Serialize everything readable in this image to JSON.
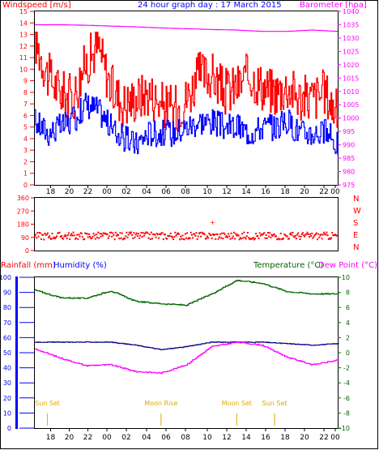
{
  "chart_data": [
    {
      "type": "line",
      "title": "24 hour graph day : 17 March 2015",
      "ylabel_left": "Windspeed [m/s]",
      "ylabel_right": "Barometer [hpa]",
      "x_ticks": [
        "18",
        "20",
        "22",
        "00",
        "02",
        "04",
        "06",
        "08",
        "10",
        "12",
        "14",
        "16",
        "18",
        "20",
        "22",
        "00"
      ],
      "y_left_ticks": [
        "0",
        "1",
        "2",
        "3",
        "4",
        "5",
        "6",
        "7",
        "8",
        "9",
        "10",
        "11",
        "12",
        "13",
        "14",
        "15"
      ],
      "y_right_ticks": [
        "975",
        "980",
        "985",
        "990",
        "995",
        "1000",
        "1005",
        "1010",
        "1015",
        "1020",
        "1025",
        "1030",
        "1035",
        "1040"
      ],
      "ylim_left": [
        0,
        15
      ],
      "ylim_right": [
        975,
        1040
      ],
      "series": [
        {
          "key": "gust",
          "color": "#ff0000",
          "hours": [
            0,
            1,
            2,
            3,
            4,
            5,
            6,
            7,
            8,
            9,
            10,
            11,
            12,
            13,
            14,
            15,
            16,
            17,
            18,
            19,
            20,
            21,
            22,
            23,
            24
          ],
          "values": [
            12.5,
            9.5,
            8.0,
            7.5,
            10.5,
            12.0,
            8.5,
            7.0,
            7.5,
            8.0,
            7.0,
            6.5,
            7.5,
            9.5,
            9.5,
            8.0,
            8.5,
            9.5,
            8.5,
            8.0,
            8.5,
            7.5,
            7.5,
            8.0,
            6.0
          ]
        },
        {
          "key": "average",
          "color": "#0000ff",
          "hours": [
            0,
            1,
            2,
            3,
            4,
            5,
            6,
            7,
            8,
            9,
            10,
            11,
            12,
            13,
            14,
            15,
            16,
            17,
            18,
            19,
            20,
            21,
            22,
            23,
            24
          ],
          "values": [
            5.5,
            4.5,
            5.0,
            5.5,
            7.0,
            6.5,
            5.0,
            4.0,
            3.5,
            4.5,
            4.5,
            4.5,
            5.0,
            5.5,
            5.5,
            5.0,
            5.0,
            4.5,
            5.0,
            5.0,
            5.5,
            4.5,
            4.5,
            4.5,
            3.5
          ]
        },
        {
          "key": "barometer",
          "color": "#ff00ff",
          "hours": [
            0,
            2,
            4,
            6,
            8,
            10,
            12,
            14,
            16,
            18,
            20,
            22,
            24
          ],
          "values": [
            1035.0,
            1035.0,
            1034.8,
            1034.5,
            1034.2,
            1033.8,
            1033.5,
            1033.2,
            1033.0,
            1032.5,
            1032.5,
            1033.0,
            1032.5
          ]
        }
      ]
    },
    {
      "type": "scatter",
      "ylabel_right": "N W S E N",
      "y_left_ticks": [
        "360",
        "270",
        "180",
        "90",
        "0"
      ],
      "ylim": [
        0,
        360
      ],
      "series": [
        {
          "key": "wind-direction",
          "color": "#ff0000",
          "mean_degrees": 100,
          "spread_degrees": 25
        }
      ]
    },
    {
      "type": "line",
      "ylabel_left": "Rainfall (mm)",
      "ylabel_left2": "Humidity (%)",
      "ylabel_right": "Temperature (°C)",
      "ylabel_right2": "Dew Point (°C)",
      "y_left_ticks": [
        "0",
        "10",
        "20",
        "30",
        "40",
        "50",
        "60",
        "70",
        "80",
        "90",
        "100"
      ],
      "y_right_ticks": [
        "10",
        "8",
        "6",
        "4",
        "2",
        "0",
        "-2",
        "-4",
        "-6",
        "-8",
        "-10"
      ],
      "ylim_left": [
        0,
        100
      ],
      "ylim_right": [
        -10,
        10
      ],
      "series": [
        {
          "key": "temperature",
          "color": "#006600",
          "hours": [
            0,
            2,
            4,
            6,
            8,
            10,
            12,
            14,
            16,
            18,
            20,
            22,
            24
          ],
          "values": [
            8.3,
            7.3,
            7.2,
            8.2,
            6.8,
            6.5,
            6.3,
            7.8,
            9.6,
            9.2,
            8.1,
            7.8,
            7.8
          ]
        },
        {
          "key": "humidity",
          "color": "#000080",
          "hours": [
            0,
            2,
            4,
            6,
            8,
            10,
            12,
            14,
            16,
            18,
            20,
            22,
            24
          ],
          "values": [
            57,
            57,
            57,
            57,
            55,
            52,
            54,
            57,
            57,
            57,
            56,
            55,
            56
          ]
        },
        {
          "key": "dew-point",
          "color": "#ff00ff",
          "hours": [
            0,
            2,
            4,
            6,
            8,
            10,
            12,
            14,
            16,
            18,
            20,
            22,
            24
          ],
          "values": [
            0.5,
            -0.7,
            -1.7,
            -1.6,
            -2.5,
            -2.7,
            -1.6,
            0.8,
            1.4,
            1.0,
            -0.6,
            -1.6,
            -1.0
          ]
        }
      ],
      "annotations": [
        {
          "label": "Sun Set",
          "hour": 1
        },
        {
          "label": "Moon Rise",
          "hour": 10
        },
        {
          "label": "Moon Set",
          "hour": 16
        },
        {
          "label": "Sun Set",
          "hour": 19
        }
      ]
    }
  ]
}
